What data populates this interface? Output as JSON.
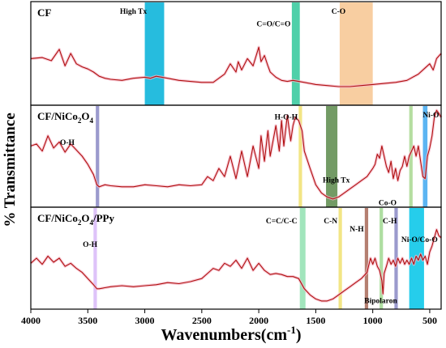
{
  "chart_data": {
    "type": "line",
    "x_label": "Wavenumbers(cm",
    "x_label_sup": "-1",
    "x_label_end": ")",
    "y_label": "% Transmittance",
    "xlim": [
      4000,
      400
    ],
    "x_ticks": [
      4000,
      3500,
      3000,
      2500,
      2000,
      1500,
      1000,
      500
    ],
    "x_tick_labels": [
      "4000",
      "3500",
      "3000",
      "2500",
      "2000",
      "1500",
      "1000",
      "500"
    ],
    "line_color": "#b01010",
    "panels": [
      {
        "title": "CF",
        "title_sub": "",
        "bands": [
          {
            "from": 3000,
            "to": 2830,
            "color": "#00b0d8",
            "label": "High Tx"
          },
          {
            "from": 1710,
            "to": 1640,
            "color": "#30c89a",
            "label": "C=O/C=O"
          },
          {
            "from": 1290,
            "to": 1000,
            "color": "#f7c590",
            "label": "C-O"
          }
        ],
        "annotations": [
          {
            "text": "High Tx",
            "x": 3100,
            "level": 0.08
          },
          {
            "text": "C=O/C=O",
            "x": 1870,
            "level": 0.2
          },
          {
            "text": "C-O",
            "x": 1300,
            "level": 0.08
          }
        ],
        "series": [
          [
            4000,
            0.55
          ],
          [
            3900,
            0.54
          ],
          [
            3820,
            0.57
          ],
          [
            3750,
            0.46
          ],
          [
            3700,
            0.62
          ],
          [
            3650,
            0.5
          ],
          [
            3600,
            0.6
          ],
          [
            3550,
            0.63
          ],
          [
            3500,
            0.65
          ],
          [
            3450,
            0.68
          ],
          [
            3400,
            0.72
          ],
          [
            3350,
            0.74
          ],
          [
            3300,
            0.75
          ],
          [
            3200,
            0.76
          ],
          [
            3100,
            0.74
          ],
          [
            3000,
            0.73
          ],
          [
            2950,
            0.74
          ],
          [
            2900,
            0.72
          ],
          [
            2850,
            0.73
          ],
          [
            2800,
            0.74
          ],
          [
            2700,
            0.76
          ],
          [
            2600,
            0.77
          ],
          [
            2500,
            0.78
          ],
          [
            2400,
            0.78
          ],
          [
            2350,
            0.74
          ],
          [
            2300,
            0.7
          ],
          [
            2250,
            0.6
          ],
          [
            2200,
            0.68
          ],
          [
            2180,
            0.58
          ],
          [
            2150,
            0.66
          ],
          [
            2100,
            0.55
          ],
          [
            2050,
            0.62
          ],
          [
            2000,
            0.44
          ],
          [
            1980,
            0.58
          ],
          [
            1950,
            0.52
          ],
          [
            1920,
            0.62
          ],
          [
            1900,
            0.68
          ],
          [
            1850,
            0.73
          ],
          [
            1800,
            0.76
          ],
          [
            1750,
            0.77
          ],
          [
            1700,
            0.76
          ],
          [
            1650,
            0.77
          ],
          [
            1600,
            0.78
          ],
          [
            1500,
            0.8
          ],
          [
            1400,
            0.81
          ],
          [
            1300,
            0.82
          ],
          [
            1200,
            0.82
          ],
          [
            1100,
            0.81
          ],
          [
            1000,
            0.8
          ],
          [
            900,
            0.79
          ],
          [
            800,
            0.78
          ],
          [
            700,
            0.76
          ],
          [
            600,
            0.7
          ],
          [
            550,
            0.65
          ],
          [
            500,
            0.6
          ],
          [
            470,
            0.66
          ],
          [
            440,
            0.55
          ],
          [
            400,
            0.5
          ]
        ]
      },
      {
        "title": "CF/NiCo",
        "title_sub": "2",
        "title_mid": "O",
        "title_sub2": "4",
        "title_end": "",
        "bands": [
          {
            "from": 3430,
            "to": 3400,
            "color": "#8a88c4",
            "label": "O-H"
          },
          {
            "from": 1650,
            "to": 1620,
            "color": "#f0e070",
            "label": "H-O-H"
          },
          {
            "from": 1410,
            "to": 1310,
            "color": "#5a8a4a",
            "label": "High Tx"
          },
          {
            "from": 680,
            "to": 650,
            "color": "#a8d890",
            "label": "Co-O"
          },
          {
            "from": 560,
            "to": 520,
            "color": "#40a8f0",
            "label": "Ni-O"
          }
        ],
        "annotations": [
          {
            "text": "O-H",
            "x": 3680,
            "level": 0.35
          },
          {
            "text": "H-O-H",
            "x": 1760,
            "level": 0.1
          },
          {
            "text": "High Tx",
            "x": 1320,
            "level": 0.72
          },
          {
            "text": "Co-O",
            "x": 870,
            "level": 0.94
          },
          {
            "text": "Ni-O",
            "x": 490,
            "level": 0.08
          }
        ],
        "series": [
          [
            4000,
            0.4
          ],
          [
            3950,
            0.38
          ],
          [
            3900,
            0.45
          ],
          [
            3850,
            0.3
          ],
          [
            3800,
            0.42
          ],
          [
            3750,
            0.36
          ],
          [
            3700,
            0.46
          ],
          [
            3650,
            0.38
          ],
          [
            3600,
            0.44
          ],
          [
            3550,
            0.5
          ],
          [
            3500,
            0.58
          ],
          [
            3450,
            0.68
          ],
          [
            3420,
            0.78
          ],
          [
            3400,
            0.8
          ],
          [
            3350,
            0.78
          ],
          [
            3300,
            0.79
          ],
          [
            3200,
            0.8
          ],
          [
            3100,
            0.8
          ],
          [
            3000,
            0.78
          ],
          [
            2900,
            0.79
          ],
          [
            2800,
            0.8
          ],
          [
            2700,
            0.78
          ],
          [
            2600,
            0.79
          ],
          [
            2500,
            0.78
          ],
          [
            2450,
            0.7
          ],
          [
            2400,
            0.74
          ],
          [
            2350,
            0.62
          ],
          [
            2300,
            0.7
          ],
          [
            2250,
            0.5
          ],
          [
            2200,
            0.72
          ],
          [
            2150,
            0.45
          ],
          [
            2100,
            0.7
          ],
          [
            2050,
            0.4
          ],
          [
            2000,
            0.62
          ],
          [
            1980,
            0.3
          ],
          [
            1950,
            0.55
          ],
          [
            1920,
            0.25
          ],
          [
            1900,
            0.5
          ],
          [
            1850,
            0.2
          ],
          [
            1820,
            0.45
          ],
          [
            1800,
            0.15
          ],
          [
            1780,
            0.4
          ],
          [
            1750,
            0.1
          ],
          [
            1720,
            0.35
          ],
          [
            1700,
            0.2
          ],
          [
            1680,
            0.12
          ],
          [
            1650,
            0.15
          ],
          [
            1620,
            0.25
          ],
          [
            1600,
            0.45
          ],
          [
            1550,
            0.62
          ],
          [
            1500,
            0.78
          ],
          [
            1450,
            0.86
          ],
          [
            1400,
            0.9
          ],
          [
            1350,
            0.92
          ],
          [
            1300,
            0.9
          ],
          [
            1250,
            0.86
          ],
          [
            1200,
            0.82
          ],
          [
            1150,
            0.78
          ],
          [
            1100,
            0.74
          ],
          [
            1050,
            0.7
          ],
          [
            1000,
            0.62
          ],
          [
            980,
            0.58
          ],
          [
            960,
            0.48
          ],
          [
            940,
            0.52
          ],
          [
            920,
            0.4
          ],
          [
            900,
            0.5
          ],
          [
            880,
            0.6
          ],
          [
            860,
            0.66
          ],
          [
            840,
            0.55
          ],
          [
            820,
            0.72
          ],
          [
            800,
            0.62
          ],
          [
            780,
            0.74
          ],
          [
            760,
            0.64
          ],
          [
            740,
            0.6
          ],
          [
            720,
            0.5
          ],
          [
            700,
            0.6
          ],
          [
            680,
            0.5
          ],
          [
            660,
            0.45
          ],
          [
            640,
            0.4
          ],
          [
            620,
            0.5
          ],
          [
            600,
            0.4
          ],
          [
            580,
            0.55
          ],
          [
            560,
            0.7
          ],
          [
            540,
            0.72
          ],
          [
            520,
            0.5
          ],
          [
            500,
            0.42
          ],
          [
            480,
            0.3
          ],
          [
            460,
            0.12
          ],
          [
            440,
            0.05
          ],
          [
            420,
            0.08
          ],
          [
            400,
            0.12
          ]
        ]
      },
      {
        "title": "CF/NiCo",
        "title_sub": "2",
        "title_mid": "O",
        "title_sub2": "4",
        "title_end": "/PPy",
        "bands": [
          {
            "from": 3450,
            "to": 3420,
            "color": "#d8b8f8",
            "label": "O-H"
          },
          {
            "from": 1640,
            "to": 1590,
            "color": "#90e0b0",
            "label": "C=C/C-C"
          },
          {
            "from": 1300,
            "to": 1270,
            "color": "#f0e070",
            "label": "C-N"
          },
          {
            "from": 1070,
            "to": 1040,
            "color": "#a86858",
            "label": "N-H"
          },
          {
            "from": 940,
            "to": 910,
            "color": "#a0d890",
            "label": "Bipolaron"
          },
          {
            "from": 810,
            "to": 780,
            "color": "#8a88c4",
            "label": "C-H"
          },
          {
            "from": 680,
            "to": 550,
            "color": "#00c4e8",
            "label": "Ni-O/Co-O"
          }
        ],
        "annotations": [
          {
            "text": "O-H",
            "x": 3480,
            "level": 0.35
          },
          {
            "text": "C=C/C-C",
            "x": 1800,
            "level": 0.12
          },
          {
            "text": "C-N",
            "x": 1370,
            "level": 0.12
          },
          {
            "text": "N-H",
            "x": 1140,
            "level": 0.2
          },
          {
            "text": "C-H",
            "x": 850,
            "level": 0.12
          },
          {
            "text": "Bipolaron",
            "x": 930,
            "level": 0.9
          },
          {
            "text": "Ni-O/Co-O",
            "x": 590,
            "level": 0.3
          }
        ],
        "series": [
          [
            4000,
            0.55
          ],
          [
            3950,
            0.5
          ],
          [
            3900,
            0.56
          ],
          [
            3850,
            0.48
          ],
          [
            3800,
            0.54
          ],
          [
            3750,
            0.5
          ],
          [
            3700,
            0.58
          ],
          [
            3650,
            0.55
          ],
          [
            3600,
            0.6
          ],
          [
            3550,
            0.64
          ],
          [
            3500,
            0.7
          ],
          [
            3450,
            0.76
          ],
          [
            3420,
            0.8
          ],
          [
            3400,
            0.8
          ],
          [
            3350,
            0.79
          ],
          [
            3300,
            0.78
          ],
          [
            3200,
            0.77
          ],
          [
            3100,
            0.78
          ],
          [
            3000,
            0.77
          ],
          [
            2900,
            0.76
          ],
          [
            2800,
            0.74
          ],
          [
            2700,
            0.75
          ],
          [
            2600,
            0.73
          ],
          [
            2500,
            0.7
          ],
          [
            2450,
            0.65
          ],
          [
            2400,
            0.6
          ],
          [
            2350,
            0.62
          ],
          [
            2300,
            0.55
          ],
          [
            2250,
            0.58
          ],
          [
            2200,
            0.52
          ],
          [
            2150,
            0.6
          ],
          [
            2100,
            0.5
          ],
          [
            2050,
            0.62
          ],
          [
            2000,
            0.55
          ],
          [
            1950,
            0.62
          ],
          [
            1900,
            0.66
          ],
          [
            1850,
            0.65
          ],
          [
            1800,
            0.66
          ],
          [
            1750,
            0.68
          ],
          [
            1700,
            0.68
          ],
          [
            1650,
            0.7
          ],
          [
            1600,
            0.8
          ],
          [
            1550,
            0.86
          ],
          [
            1500,
            0.9
          ],
          [
            1450,
            0.92
          ],
          [
            1400,
            0.92
          ],
          [
            1350,
            0.9
          ],
          [
            1300,
            0.86
          ],
          [
            1250,
            0.82
          ],
          [
            1200,
            0.78
          ],
          [
            1150,
            0.74
          ],
          [
            1100,
            0.7
          ],
          [
            1050,
            0.64
          ],
          [
            1020,
            0.5
          ],
          [
            1000,
            0.56
          ],
          [
            980,
            0.5
          ],
          [
            960,
            0.58
          ],
          [
            940,
            0.62
          ],
          [
            920,
            0.72
          ],
          [
            910,
            0.85
          ],
          [
            900,
            0.65
          ],
          [
            880,
            0.58
          ],
          [
            860,
            0.5
          ],
          [
            840,
            0.56
          ],
          [
            820,
            0.52
          ],
          [
            800,
            0.58
          ],
          [
            780,
            0.5
          ],
          [
            760,
            0.55
          ],
          [
            740,
            0.5
          ],
          [
            720,
            0.56
          ],
          [
            700,
            0.52
          ],
          [
            680,
            0.56
          ],
          [
            660,
            0.5
          ],
          [
            640,
            0.56
          ],
          [
            620,
            0.48
          ],
          [
            600,
            0.52
          ],
          [
            580,
            0.46
          ],
          [
            560,
            0.52
          ],
          [
            540,
            0.48
          ],
          [
            520,
            0.56
          ],
          [
            500,
            0.44
          ],
          [
            480,
            0.38
          ],
          [
            460,
            0.3
          ],
          [
            440,
            0.22
          ],
          [
            420,
            0.28
          ],
          [
            400,
            0.3
          ]
        ]
      }
    ]
  }
}
